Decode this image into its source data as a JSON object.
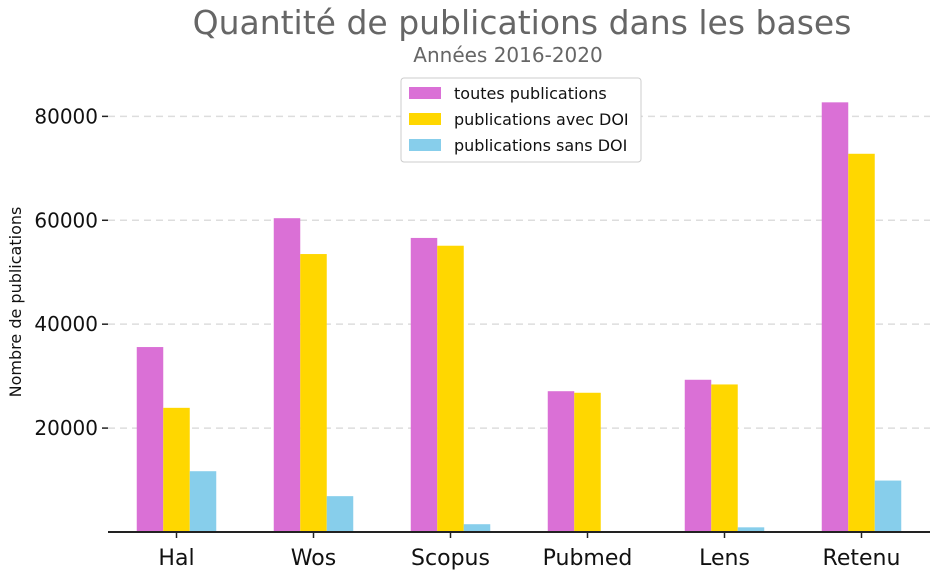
{
  "chart_data": {
    "type": "bar",
    "title": "Quantité de publications dans les bases",
    "subtitle": "Années 2016-2020",
    "xlabel": "",
    "ylabel": "Nombre de publications",
    "categories": [
      "Hal",
      "Wos",
      "Scopus",
      "Pubmed",
      "Lens",
      "Retenu"
    ],
    "series": [
      {
        "name": "toutes publications",
        "color": "#da70d6",
        "values": [
          35600,
          60400,
          56600,
          27100,
          29300,
          82700
        ]
      },
      {
        "name": "publications avec DOI",
        "color": "#ffd700",
        "values": [
          23900,
          53500,
          55100,
          26800,
          28400,
          72800
        ]
      },
      {
        "name": "publications sans DOI",
        "color": "#87ceeb",
        "values": [
          11700,
          6900,
          1500,
          0,
          900,
          9900
        ]
      }
    ],
    "ylim": [
      0,
      87000
    ],
    "yticks": [
      20000,
      40000,
      60000,
      80000
    ],
    "grid": "horizontal dashed",
    "legend_position": "top-center"
  }
}
